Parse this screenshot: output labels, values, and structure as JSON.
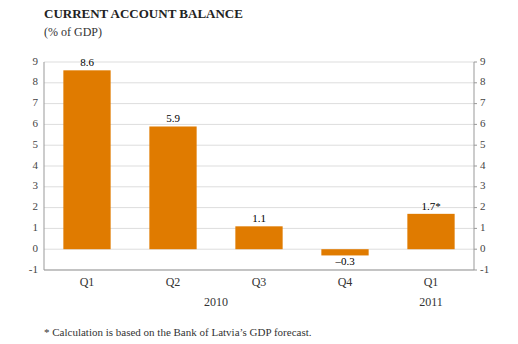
{
  "chart_data": {
    "type": "bar",
    "title": "CURRENT ACCOUNT BALANCE",
    "subtitle": "(% of GDP)",
    "categories": [
      "Q1",
      "Q2",
      "Q3",
      "Q4",
      "Q1"
    ],
    "group_labels": [
      "2010",
      "2011"
    ],
    "values": [
      8.6,
      5.9,
      1.1,
      -0.3,
      1.7
    ],
    "value_labels": [
      "8.6",
      "5.9",
      "1.1",
      "–0.3",
      "1.7*"
    ],
    "data_labels": true,
    "color": "#E07B00",
    "ylim": [
      -1,
      9
    ],
    "yticks": [
      -1,
      0,
      1,
      2,
      3,
      4,
      5,
      6,
      7,
      8,
      9
    ],
    "y2lim": [
      -1,
      9
    ],
    "y2ticks": [
      -1,
      0,
      1,
      2,
      3,
      4,
      5,
      6,
      7,
      8,
      9
    ],
    "grid": true,
    "footnote": "* Calculation is based on the Bank of Latvia’s GDP forecast."
  }
}
